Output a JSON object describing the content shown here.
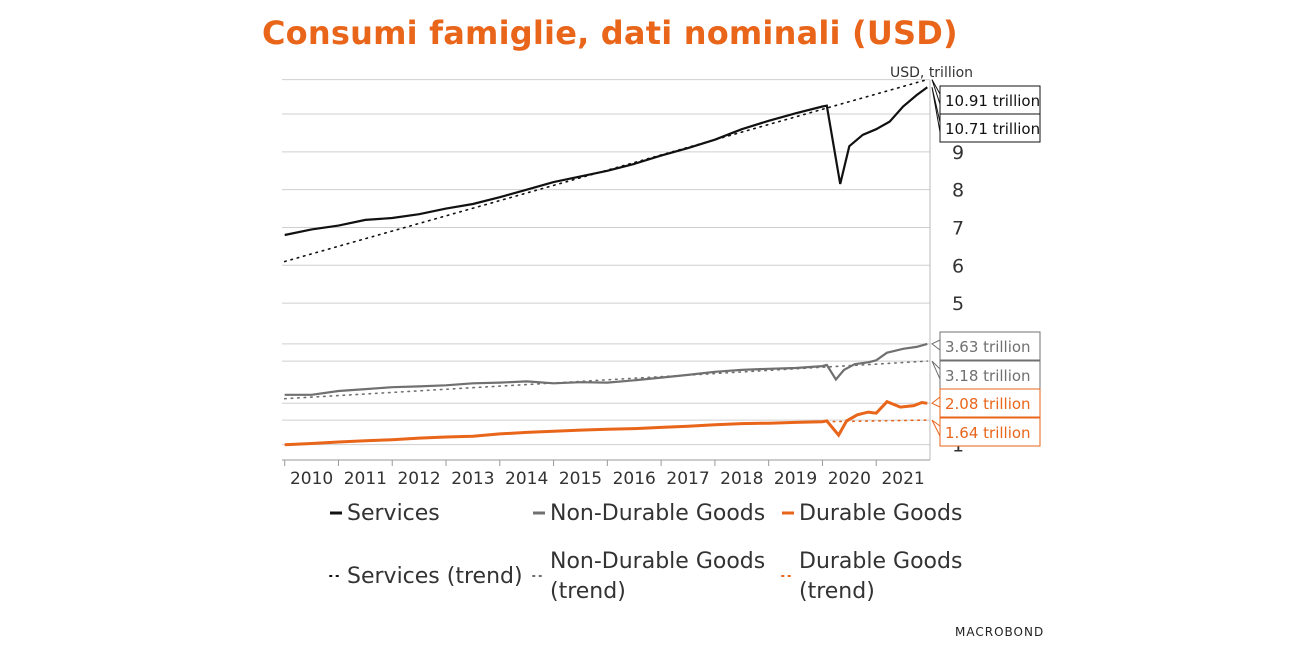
{
  "title": "Consumi famiglie, dati nominali (USD)",
  "logo": "MACROBOND",
  "colors": {
    "services": "#111111",
    "non_durable": "#707070",
    "durable": "#e8651a",
    "grid": "#cfcfcf",
    "title": "#e8651a"
  },
  "chart_data": [
    {
      "type": "line",
      "panel": "upper",
      "ylabel": "USD, trillion",
      "ylim": [
        4.5,
        10.9
      ],
      "yticks": [
        5,
        6,
        7,
        8,
        9
      ],
      "grid": true,
      "x_ticks": [
        "2010",
        "2011",
        "2012",
        "2013",
        "2014",
        "2015",
        "2016",
        "2017",
        "2018",
        "2019",
        "2020",
        "2021"
      ],
      "series": [
        {
          "name": "Services",
          "style": "solid",
          "color": "#111111",
          "points": [
            [
              2010.0,
              6.8
            ],
            [
              2010.5,
              6.95
            ],
            [
              2011.0,
              7.05
            ],
            [
              2011.5,
              7.2
            ],
            [
              2012.0,
              7.25
            ],
            [
              2012.5,
              7.35
            ],
            [
              2013.0,
              7.5
            ],
            [
              2013.5,
              7.62
            ],
            [
              2014.0,
              7.8
            ],
            [
              2014.5,
              8.0
            ],
            [
              2015.0,
              8.2
            ],
            [
              2015.5,
              8.35
            ],
            [
              2016.0,
              8.5
            ],
            [
              2016.5,
              8.68
            ],
            [
              2017.0,
              8.9
            ],
            [
              2017.5,
              9.1
            ],
            [
              2018.0,
              9.32
            ],
            [
              2018.5,
              9.6
            ],
            [
              2019.0,
              9.82
            ],
            [
              2019.5,
              10.02
            ],
            [
              2020.0,
              10.2
            ],
            [
              2020.08,
              10.22
            ],
            [
              2020.33,
              8.15
            ],
            [
              2020.5,
              9.15
            ],
            [
              2020.75,
              9.45
            ],
            [
              2021.0,
              9.6
            ],
            [
              2021.25,
              9.8
            ],
            [
              2021.5,
              10.2
            ],
            [
              2021.75,
              10.5
            ],
            [
              2021.95,
              10.71
            ]
          ]
        },
        {
          "name": "Services (trend)",
          "style": "dotted",
          "color": "#111111",
          "points": [
            [
              2010.0,
              6.1
            ],
            [
              2021.95,
              10.91
            ]
          ]
        }
      ],
      "end_labels": [
        {
          "text": "10.91 trillion",
          "value": 10.91,
          "color": "#111111"
        },
        {
          "text": "10.71 trillion",
          "value": 10.71,
          "color": "#111111"
        }
      ]
    },
    {
      "type": "line",
      "panel": "lower",
      "ylim": [
        0.6,
        4.2
      ],
      "yticks": [
        1
      ],
      "grid": true,
      "series": [
        {
          "name": "Non-Durable Goods",
          "style": "solid",
          "color": "#707070",
          "points": [
            [
              2010.0,
              2.3
            ],
            [
              2010.5,
              2.3
            ],
            [
              2011.0,
              2.4
            ],
            [
              2011.5,
              2.45
            ],
            [
              2012.0,
              2.5
            ],
            [
              2012.5,
              2.52
            ],
            [
              2013.0,
              2.55
            ],
            [
              2013.5,
              2.6
            ],
            [
              2014.0,
              2.62
            ],
            [
              2014.5,
              2.65
            ],
            [
              2015.0,
              2.6
            ],
            [
              2015.5,
              2.63
            ],
            [
              2016.0,
              2.62
            ],
            [
              2016.5,
              2.68
            ],
            [
              2017.0,
              2.75
            ],
            [
              2017.5,
              2.82
            ],
            [
              2018.0,
              2.9
            ],
            [
              2018.5,
              2.95
            ],
            [
              2019.0,
              2.98
            ],
            [
              2019.5,
              3.0
            ],
            [
              2020.0,
              3.05
            ],
            [
              2020.08,
              3.08
            ],
            [
              2020.25,
              2.7
            ],
            [
              2020.4,
              2.95
            ],
            [
              2020.6,
              3.1
            ],
            [
              2020.85,
              3.15
            ],
            [
              2021.0,
              3.2
            ],
            [
              2021.2,
              3.4
            ],
            [
              2021.5,
              3.5
            ],
            [
              2021.75,
              3.55
            ],
            [
              2021.95,
              3.63
            ]
          ]
        },
        {
          "name": "Non-Durable Goods (trend)",
          "style": "dotted",
          "color": "#707070",
          "points": [
            [
              2010.0,
              2.2
            ],
            [
              2021.95,
              3.18
            ]
          ]
        },
        {
          "name": "Durable Goods",
          "style": "solid",
          "color": "#e8651a",
          "points": [
            [
              2010.0,
              1.0
            ],
            [
              2010.5,
              1.03
            ],
            [
              2011.0,
              1.07
            ],
            [
              2011.5,
              1.1
            ],
            [
              2012.0,
              1.13
            ],
            [
              2012.5,
              1.17
            ],
            [
              2013.0,
              1.2
            ],
            [
              2013.5,
              1.22
            ],
            [
              2014.0,
              1.28
            ],
            [
              2014.5,
              1.32
            ],
            [
              2015.0,
              1.35
            ],
            [
              2015.5,
              1.38
            ],
            [
              2016.0,
              1.4
            ],
            [
              2016.5,
              1.42
            ],
            [
              2017.0,
              1.45
            ],
            [
              2017.5,
              1.48
            ],
            [
              2018.0,
              1.52
            ],
            [
              2018.5,
              1.55
            ],
            [
              2019.0,
              1.56
            ],
            [
              2019.5,
              1.58
            ],
            [
              2020.0,
              1.6
            ],
            [
              2020.08,
              1.62
            ],
            [
              2020.3,
              1.25
            ],
            [
              2020.45,
              1.62
            ],
            [
              2020.65,
              1.78
            ],
            [
              2020.85,
              1.85
            ],
            [
              2021.0,
              1.82
            ],
            [
              2021.2,
              2.12
            ],
            [
              2021.45,
              1.98
            ],
            [
              2021.7,
              2.02
            ],
            [
              2021.85,
              2.1
            ],
            [
              2021.95,
              2.08
            ]
          ]
        },
        {
          "name": "Durable Goods (trend)",
          "style": "dotted",
          "color": "#e8651a",
          "points": [
            [
              2020.08,
              1.6
            ],
            [
              2021.95,
              1.64
            ]
          ]
        }
      ],
      "end_labels": [
        {
          "text": "3.63 trillion",
          "value": 3.63,
          "color": "#707070"
        },
        {
          "text": "3.18 trillion",
          "value": 3.18,
          "color": "#707070"
        },
        {
          "text": "2.08 trillion",
          "value": 2.08,
          "color": "#e8651a"
        },
        {
          "text": "1.64 trillion",
          "value": 1.64,
          "color": "#e8651a"
        }
      ]
    }
  ],
  "legend": [
    {
      "label": "Services",
      "style": "solid",
      "color": "#111111"
    },
    {
      "label": "Non-Durable Goods",
      "style": "solid",
      "color": "#707070"
    },
    {
      "label": "Durable Goods",
      "style": "solid",
      "color": "#e8651a"
    },
    {
      "label": "Services (trend)",
      "style": "dotted",
      "color": "#111111"
    },
    {
      "label": "Non-Durable Goods (trend)",
      "style": "dotted",
      "color": "#707070"
    },
    {
      "label": "Durable Goods (trend)",
      "style": "dotted",
      "color": "#e8651a"
    }
  ]
}
